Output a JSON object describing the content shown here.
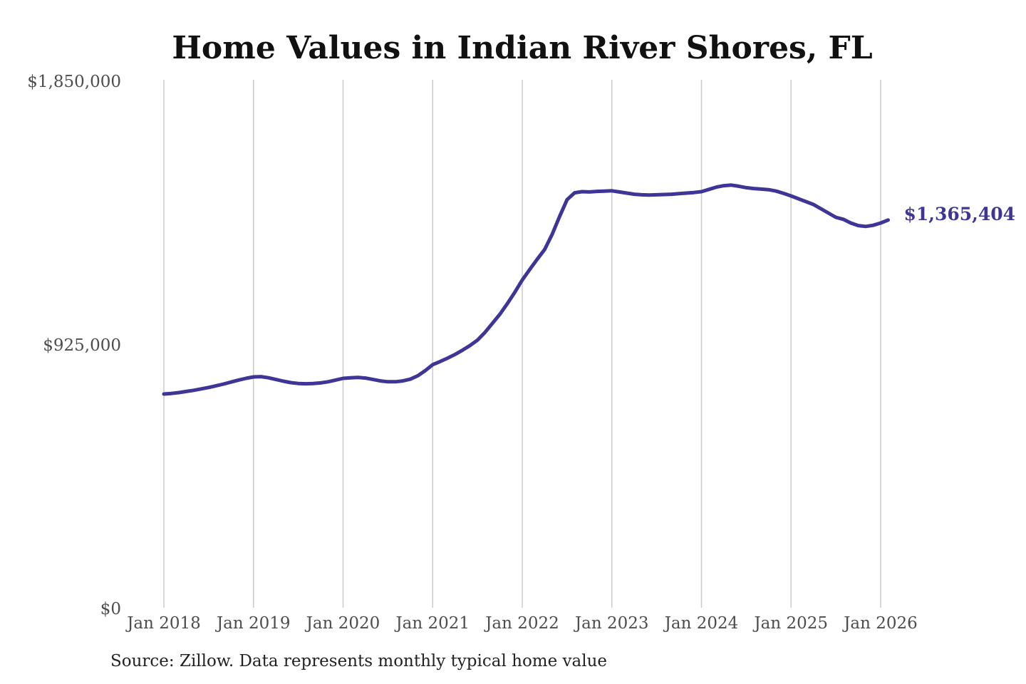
{
  "colors": {
    "line": "#3e3596",
    "grid": "#cbcbcb",
    "background": "#ffffff"
  },
  "chart_data": {
    "type": "line",
    "title": "Home Values in Indian River Shores, FL",
    "source_note": "Source: Zillow. Data represents monthly typical home value",
    "x_interval": "monthly",
    "x_tick_labels": [
      "Jan 2018",
      "Jan 2019",
      "Jan 2020",
      "Jan 2021",
      "Jan 2022",
      "Jan 2023",
      "Jan 2024",
      "Jan 2025",
      "Jan 2026"
    ],
    "y_ticks": [
      {
        "value": 1850000,
        "label": "$1,850,000"
      },
      {
        "value": 925000,
        "label": "$925,000"
      },
      {
        "value": 0,
        "label": "$0"
      }
    ],
    "ylim": [
      0,
      1850000
    ],
    "grid": "vertical-only",
    "legend": "none",
    "final_value": 1365404,
    "final_value_label": "$1,365,404",
    "series": [
      {
        "name": "Monthly typical home value",
        "start": "Jan 2018",
        "values": [
          755000,
          757000,
          760000,
          764000,
          768000,
          773000,
          778000,
          784000,
          790000,
          797000,
          804000,
          810000,
          815000,
          816000,
          812000,
          806000,
          800000,
          795000,
          792000,
          791000,
          792000,
          794000,
          798000,
          804000,
          810000,
          812000,
          813000,
          811000,
          806000,
          801000,
          798000,
          798000,
          801000,
          807000,
          819000,
          837000,
          858000,
          869000,
          881000,
          894000,
          909000,
          925000,
          944000,
          971000,
          1003000,
          1035000,
          1072000,
          1112000,
          1155000,
          1192000,
          1228000,
          1262000,
          1315000,
          1378000,
          1437000,
          1461000,
          1465000,
          1464000,
          1466000,
          1467000,
          1468000,
          1464000,
          1460000,
          1456000,
          1454000,
          1453000,
          1454000,
          1455000,
          1456000,
          1458000,
          1460000,
          1462000,
          1465000,
          1473000,
          1481000,
          1486000,
          1488000,
          1484000,
          1479000,
          1476000,
          1474000,
          1472000,
          1467000,
          1459000,
          1450000,
          1440000,
          1430000,
          1420000,
          1405000,
          1390000,
          1375000,
          1368000,
          1355000,
          1346000,
          1343000,
          1347000,
          1355000,
          1365404
        ]
      }
    ]
  }
}
